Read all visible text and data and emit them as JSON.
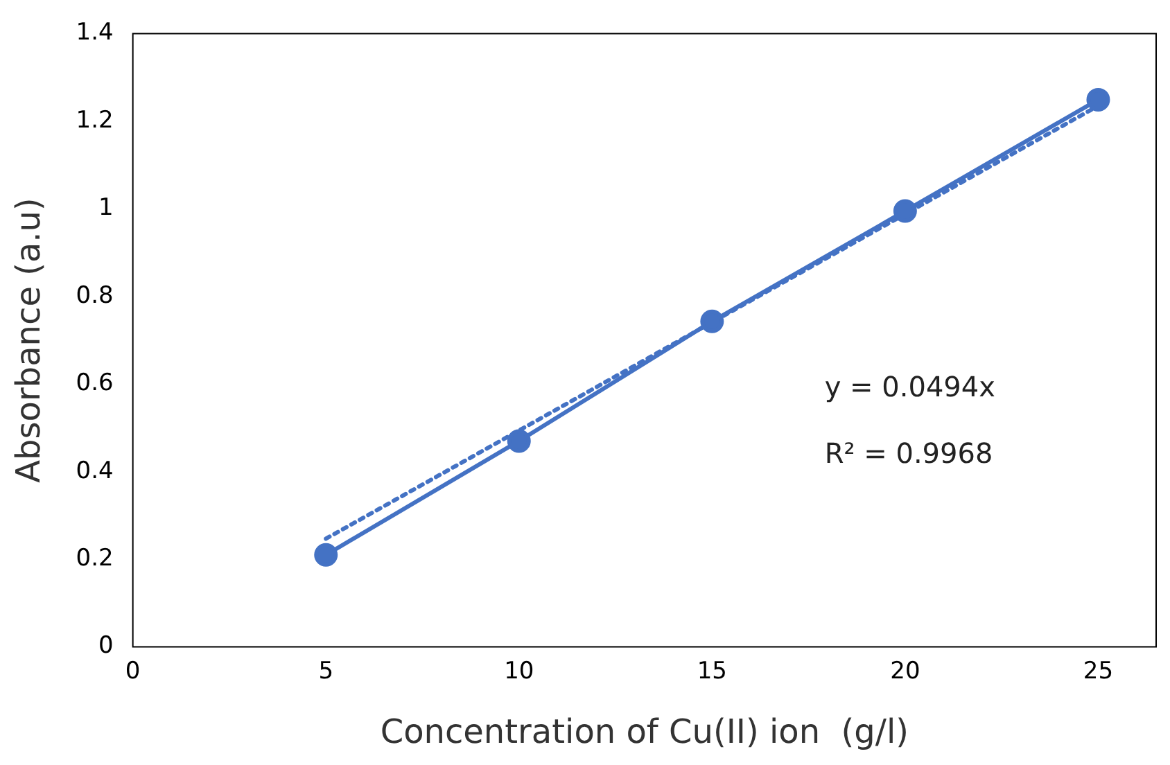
{
  "chart_data": {
    "type": "line",
    "xlabel": "Concentration of Cu(II) ion  (g/l)",
    "ylabel": "Absorbance (a.u)",
    "x": [
      5,
      10,
      15,
      20,
      25
    ],
    "series": [
      {
        "color": "#4472c4",
        "values": [
          0.21,
          0.47,
          0.743,
          0.995,
          1.249
        ],
        "marker": "circle",
        "line_style": "solid"
      },
      {
        "type": "line",
        "color": "#4472c4",
        "x": [
          5,
          25
        ],
        "values": [
          0.247,
          1.235
        ],
        "marker": "none",
        "line_style": "dotted"
      }
    ],
    "xlim": [
      0,
      26.5
    ],
    "xticks": [
      0,
      5,
      10,
      15,
      20,
      25
    ],
    "ylim": [
      0,
      1.4
    ],
    "yticks": [
      0,
      0.2,
      0.4,
      0.6,
      0.8,
      1,
      1.2,
      1.4
    ],
    "grid": false,
    "legend": false,
    "annotations": [
      "y = 0.0494x",
      "R² = 0.9968"
    ]
  }
}
